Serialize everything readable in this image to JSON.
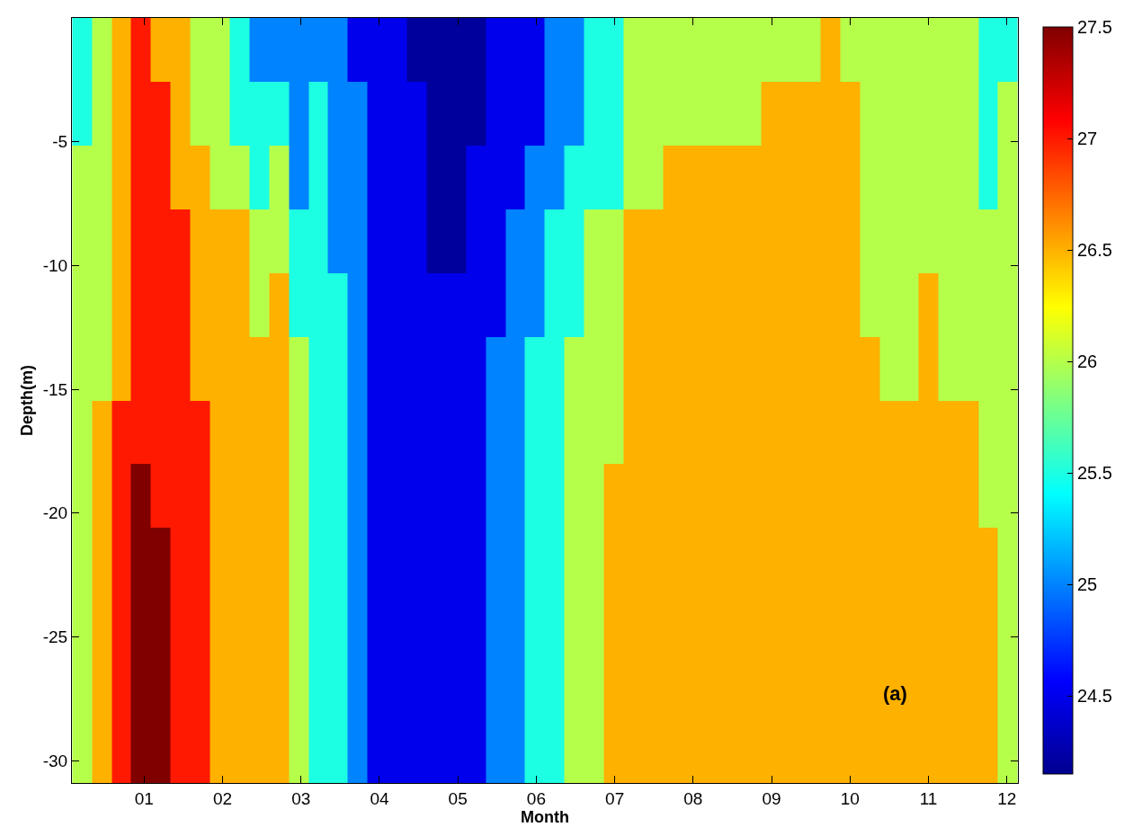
{
  "chart_data": {
    "type": "heatmap",
    "xlabel": "Month",
    "ylabel": "Depth(m)",
    "annotations": [
      "(a)"
    ],
    "x": [
      0.21,
      0.46,
      0.71,
      0.96,
      1.21,
      1.46,
      1.71,
      1.96,
      2.22,
      2.47,
      2.72,
      2.97,
      3.22,
      3.47,
      3.72,
      3.97,
      4.22,
      4.47,
      4.73,
      4.98,
      5.23,
      5.48,
      5.73,
      5.98,
      6.23,
      6.48,
      6.73,
      6.98,
      7.24,
      7.49,
      7.74,
      7.99,
      8.24,
      8.49,
      8.74,
      8.99,
      9.25,
      9.5,
      9.75,
      10,
      10.25,
      10.5,
      10.75,
      11,
      11.26,
      11.51,
      11.76,
      12.01
    ],
    "cells": [
      [
        25.5,
        26,
        26.5,
        27,
        26.5,
        26.5,
        26,
        26,
        25.5,
        25,
        25,
        25,
        25,
        25,
        24.5,
        24.5,
        24.5,
        24.2,
        24.2,
        24.2,
        24.2,
        24.5,
        24.5,
        24.5,
        25,
        25,
        25.5,
        25.5,
        26,
        26,
        26,
        26,
        26,
        26,
        26,
        26,
        26,
        26,
        26.5,
        26,
        26,
        26,
        26,
        26,
        26,
        26,
        25.5,
        25.5
      ],
      [
        25.5,
        26,
        26.5,
        27,
        27,
        26.5,
        26,
        26,
        25.5,
        25.5,
        25.5,
        25,
        25.5,
        25,
        25,
        24.5,
        24.5,
        24.5,
        24.2,
        24.2,
        24.2,
        24.5,
        24.5,
        24.5,
        25,
        25,
        25.5,
        25.5,
        26,
        26,
        26,
        26,
        26,
        26,
        26,
        26.5,
        26.5,
        26.5,
        26.5,
        26.5,
        26,
        26,
        26,
        26,
        26,
        26,
        25.5,
        26
      ],
      [
        26,
        26,
        26.5,
        27,
        27,
        26.5,
        26.5,
        26,
        26,
        25.5,
        26,
        25,
        25.5,
        25,
        25,
        24.5,
        24.5,
        24.5,
        24.2,
        24.2,
        24.5,
        24.5,
        24.5,
        25,
        25,
        25.5,
        25.5,
        25.5,
        26,
        26,
        26.5,
        26.5,
        26.5,
        26.5,
        26.5,
        26.5,
        26.5,
        26.5,
        26.5,
        26.5,
        26,
        26,
        26,
        26,
        26,
        26,
        25.5,
        26
      ],
      [
        26,
        26,
        26.5,
        27,
        27,
        27,
        26.5,
        26.5,
        26.5,
        26,
        26,
        25.5,
        25.5,
        25,
        25,
        24.5,
        24.5,
        24.5,
        24.2,
        24.2,
        24.5,
        24.5,
        25,
        25,
        25.5,
        25.5,
        26,
        26,
        26.5,
        26.5,
        26.5,
        26.5,
        26.5,
        26.5,
        26.5,
        26.5,
        26.5,
        26.5,
        26.5,
        26.5,
        26,
        26,
        26,
        26,
        26,
        26,
        26,
        26
      ],
      [
        26,
        26,
        26.5,
        27,
        27,
        27,
        26.5,
        26.5,
        26.5,
        26,
        26.5,
        25.5,
        25.5,
        25.5,
        25,
        24.5,
        24.5,
        24.5,
        24.5,
        24.5,
        24.5,
        24.5,
        25,
        25,
        25.5,
        25.5,
        26,
        26,
        26.5,
        26.5,
        26.5,
        26.5,
        26.5,
        26.5,
        26.5,
        26.5,
        26.5,
        26.5,
        26.5,
        26.5,
        26,
        26,
        26,
        26.5,
        26,
        26,
        26,
        26
      ],
      [
        26,
        26,
        26.5,
        27,
        27,
        27,
        26.5,
        26.5,
        26.5,
        26.5,
        26.5,
        26,
        25.5,
        25.5,
        25,
        24.5,
        24.5,
        24.5,
        24.5,
        24.5,
        24.5,
        25,
        25,
        25.5,
        25.5,
        26,
        26,
        26,
        26.5,
        26.5,
        26.5,
        26.5,
        26.5,
        26.5,
        26.5,
        26.5,
        26.5,
        26.5,
        26.5,
        26.5,
        26.5,
        26,
        26,
        26.5,
        26,
        26,
        26,
        26
      ],
      [
        26,
        26.5,
        27,
        27,
        27,
        27,
        27,
        26.5,
        26.5,
        26.5,
        26.5,
        26,
        25.5,
        25.5,
        25,
        24.5,
        24.5,
        24.5,
        24.5,
        24.5,
        24.5,
        25,
        25,
        25.5,
        25.5,
        26,
        26,
        26,
        26.5,
        26.5,
        26.5,
        26.5,
        26.5,
        26.5,
        26.5,
        26.5,
        26.5,
        26.5,
        26.5,
        26.5,
        26.5,
        26.5,
        26.5,
        26.5,
        26.5,
        26.5,
        26,
        26
      ],
      [
        26,
        26.5,
        27,
        27.5,
        27,
        27,
        27,
        26.5,
        26.5,
        26.5,
        26.5,
        26,
        25.5,
        25.5,
        25,
        24.5,
        24.5,
        24.5,
        24.5,
        24.5,
        24.5,
        25,
        25,
        25.5,
        25.5,
        26,
        26,
        26.5,
        26.5,
        26.5,
        26.5,
        26.5,
        26.5,
        26.5,
        26.5,
        26.5,
        26.5,
        26.5,
        26.5,
        26.5,
        26.5,
        26.5,
        26.5,
        26.5,
        26.5,
        26.5,
        26,
        26
      ],
      [
        26,
        26.5,
        27,
        27.5,
        27.5,
        27,
        27,
        26.5,
        26.5,
        26.5,
        26.5,
        26,
        25.5,
        25.5,
        25,
        24.5,
        24.5,
        24.5,
        24.5,
        24.5,
        24.5,
        25,
        25,
        25.5,
        25.5,
        26,
        26,
        26.5,
        26.5,
        26.5,
        26.5,
        26.5,
        26.5,
        26.5,
        26.5,
        26.5,
        26.5,
        26.5,
        26.5,
        26.5,
        26.5,
        26.5,
        26.5,
        26.5,
        26.5,
        26.5,
        26.5,
        26
      ],
      [
        26,
        26.5,
        27,
        27.5,
        27.5,
        27,
        27,
        26.5,
        26.5,
        26.5,
        26.5,
        26,
        25.5,
        25.5,
        25,
        24.5,
        24.5,
        24.5,
        24.5,
        24.5,
        24.5,
        25,
        25,
        25.5,
        25.5,
        26,
        26,
        26.5,
        26.5,
        26.5,
        26.5,
        26.5,
        26.5,
        26.5,
        26.5,
        26.5,
        26.5,
        26.5,
        26.5,
        26.5,
        26.5,
        26.5,
        26.5,
        26.5,
        26.5,
        26.5,
        26.5,
        26
      ],
      [
        26,
        26.5,
        27,
        27.5,
        27.5,
        27,
        27,
        26.5,
        26.5,
        26.5,
        26.5,
        26,
        25.5,
        25.5,
        25,
        24.5,
        24.5,
        24.5,
        24.5,
        24.5,
        24.5,
        25,
        25,
        25.5,
        25.5,
        26,
        26,
        26.5,
        26.5,
        26.5,
        26.5,
        26.5,
        26.5,
        26.5,
        26.5,
        26.5,
        26.5,
        26.5,
        26.5,
        26.5,
        26.5,
        26.5,
        26.5,
        26.5,
        26.5,
        26.5,
        26.5,
        26
      ],
      [
        26,
        26.5,
        27,
        27.5,
        27.5,
        27,
        27,
        26.5,
        26.5,
        26.5,
        26.5,
        26,
        25.5,
        25.5,
        25,
        24.5,
        24.5,
        24.5,
        24.5,
        24.5,
        24.5,
        25,
        25,
        25.5,
        25.5,
        26,
        26,
        26.5,
        26.5,
        26.5,
        26.5,
        26.5,
        26.5,
        26.5,
        26.5,
        26.5,
        26.5,
        26.5,
        26.5,
        26.5,
        26.5,
        26.5,
        26.5,
        26.5,
        26.5,
        26.5,
        26.5,
        26
      ]
    ],
    "clim": [
      24.15,
      27.5
    ],
    "cticks": [
      24.5,
      25,
      25.5,
      26,
      26.5,
      27,
      27.5
    ],
    "xlim": [
      0.08,
      12.14
    ],
    "xticks": [
      {
        "value": 1,
        "label": "01"
      },
      {
        "value": 2,
        "label": "02"
      },
      {
        "value": 3,
        "label": "03"
      },
      {
        "value": 4,
        "label": "04"
      },
      {
        "value": 5,
        "label": "05"
      },
      {
        "value": 6,
        "label": "06"
      },
      {
        "value": 7,
        "label": "07"
      },
      {
        "value": 8,
        "label": "08"
      },
      {
        "value": 9,
        "label": "09"
      },
      {
        "value": 10,
        "label": "10"
      },
      {
        "value": 11,
        "label": "11"
      },
      {
        "value": 12,
        "label": "12"
      }
    ],
    "ylim": [
      -30.9,
      0
    ],
    "yticks": [
      -30,
      -25,
      -20,
      -15,
      -10,
      -5
    ]
  }
}
